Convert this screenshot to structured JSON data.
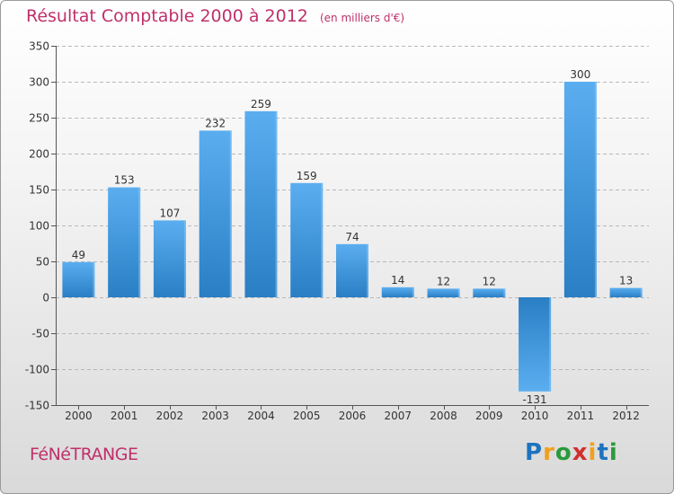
{
  "chart_data": {
    "type": "bar",
    "title": "Résultat Comptable 2000 à 2012",
    "subtitle": "(en milliers d'€)",
    "categories": [
      "2000",
      "2001",
      "2002",
      "2003",
      "2004",
      "2005",
      "2006",
      "2007",
      "2008",
      "2009",
      "2010",
      "2011",
      "2012"
    ],
    "values": [
      49,
      153,
      107,
      232,
      259,
      159,
      74,
      14,
      12,
      12,
      -131,
      300,
      13
    ],
    "value_labels": [
      "49",
      "153",
      "107",
      "232",
      "259",
      "159",
      "74",
      "14",
      "12",
      "12",
      "-131",
      "300",
      "13"
    ],
    "ylim": [
      -150,
      350
    ],
    "yticks": [
      -150,
      -100,
      -50,
      0,
      50,
      100,
      150,
      200,
      250,
      300,
      350
    ],
    "grid": true,
    "xlabel": "",
    "ylabel": ""
  },
  "commune": "FéNéTRANGE",
  "logo": {
    "letters": [
      "P",
      "r",
      "o",
      "x",
      "i",
      "t",
      "i"
    ],
    "colors": [
      "#1e73be",
      "#f0a020",
      "#2a9a3a",
      "#d0302e",
      "#f0a020",
      "#1e73be",
      "#2a9a3a"
    ]
  },
  "colors": {
    "bar_light": "#5aaef0",
    "bar_dark": "#2a7ec4",
    "title": "#c0306a",
    "grid": "#b8b8b8"
  }
}
